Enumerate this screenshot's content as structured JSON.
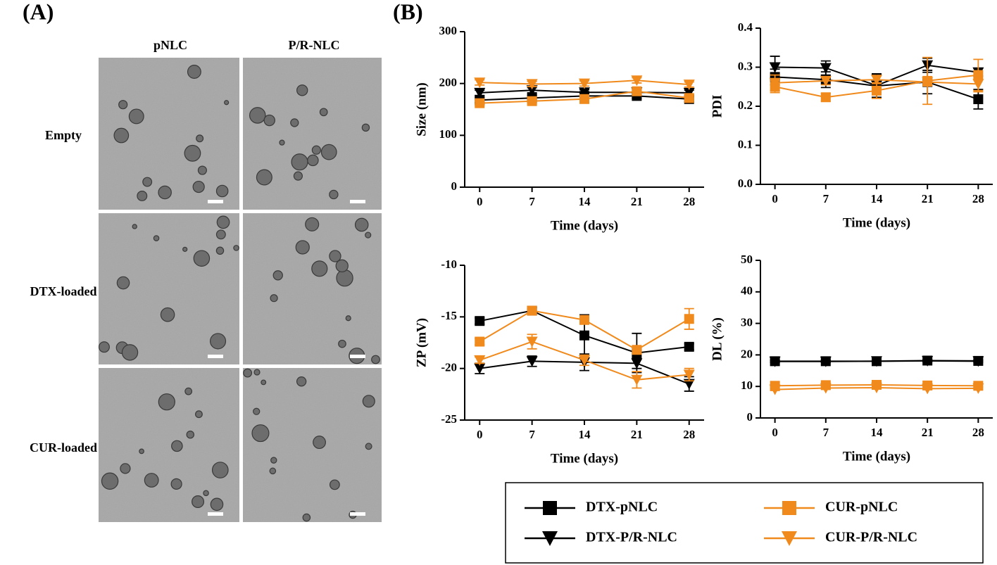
{
  "panel_a": {
    "label": "(A)",
    "columns": [
      "pNLC",
      "P/R-NLC"
    ],
    "rows": [
      "Empty",
      "DTX-loaded",
      "CUR-loaded"
    ]
  },
  "panel_b_label": "(B)",
  "chart_data": [
    {
      "type": "line",
      "ylabel": "Size (nm)",
      "xlabel": "Time (days)",
      "x": [
        0,
        7,
        14,
        21,
        28
      ],
      "xlim": [
        -2,
        30
      ],
      "xticks": [
        0,
        7,
        14,
        21,
        28
      ],
      "ylim": [
        0,
        300
      ],
      "yticks": [
        0,
        100,
        200,
        300
      ],
      "series": [
        {
          "name": "DTX-pNLC",
          "color": "#000000",
          "marker": "square",
          "values": [
            168,
            172,
            176,
            176,
            170
          ],
          "errors": [
            5,
            5,
            5,
            5,
            5
          ]
        },
        {
          "name": "DTX-P/R-NLC",
          "color": "#000000",
          "marker": "triangle-down",
          "values": [
            182,
            187,
            183,
            183,
            182
          ],
          "errors": [
            5,
            5,
            5,
            5,
            5
          ]
        },
        {
          "name": "CUR-pNLC",
          "color": "#f08a1c",
          "marker": "square",
          "values": [
            162,
            166,
            170,
            185,
            172
          ],
          "errors": [
            5,
            5,
            5,
            5,
            5
          ]
        },
        {
          "name": "CUR-P/R-NLC",
          "color": "#f08a1c",
          "marker": "triangle-down",
          "values": [
            202,
            199,
            200,
            206,
            198
          ],
          "errors": [
            5,
            5,
            5,
            5,
            5
          ]
        }
      ]
    },
    {
      "type": "line",
      "ylabel": "PDI",
      "xlabel": "Time (days)",
      "x": [
        0,
        7,
        14,
        21,
        28
      ],
      "xlim": [
        -2,
        30
      ],
      "xticks": [
        0,
        7,
        14,
        21,
        28
      ],
      "ylim": [
        0,
        0.4
      ],
      "yticks": [
        {
          "value": 0,
          "label": "0.0"
        },
        0.1,
        0.2,
        0.3,
        0.4
      ],
      "series": [
        {
          "name": "DTX-pNLC",
          "color": "#000000",
          "marker": "square",
          "values": [
            0.275,
            0.268,
            0.252,
            0.262,
            0.218
          ],
          "errors": [
            0.02,
            0.02,
            0.03,
            0.03,
            0.025
          ]
        },
        {
          "name": "DTX-P/R-NLC",
          "color": "#000000",
          "marker": "triangle-down",
          "values": [
            0.3,
            0.298,
            0.253,
            0.305,
            0.287
          ],
          "errors": [
            0.028,
            0.018,
            0.03,
            0.018,
            0.01
          ]
        },
        {
          "name": "CUR-pNLC",
          "color": "#f08a1c",
          "marker": "square",
          "values": [
            0.25,
            0.223,
            0.24,
            0.265,
            0.28
          ],
          "errors": [
            0.015,
            0.01,
            0.02,
            0.06,
            0.04
          ]
        },
        {
          "name": "CUR-P/R-NLC",
          "color": "#f08a1c",
          "marker": "triangle-down",
          "values": [
            0.26,
            0.265,
            0.268,
            0.262,
            0.257
          ],
          "errors": [
            0.02,
            0.01,
            0.01,
            0.01,
            0.02
          ]
        }
      ]
    },
    {
      "type": "line",
      "ylabel": "ZP (mV)",
      "xlabel": "Time (days)",
      "x": [
        0,
        7,
        14,
        21,
        28
      ],
      "xlim": [
        -2,
        30
      ],
      "xticks": [
        0,
        7,
        14,
        21,
        28
      ],
      "ylim": [
        -25,
        -10
      ],
      "yticks": [
        -25,
        -20,
        -15,
        -10
      ],
      "series": [
        {
          "name": "DTX-pNLC",
          "color": "#000000",
          "marker": "square",
          "values": [
            -15.4,
            -14.4,
            -16.8,
            -18.5,
            -17.9
          ],
          "errors": [
            0.3,
            0.3,
            2.0,
            1.9,
            0.3
          ]
        },
        {
          "name": "DTX-P/R-NLC",
          "color": "#000000",
          "marker": "triangle-down",
          "values": [
            -20.0,
            -19.3,
            -19.4,
            -19.5,
            -21.5
          ],
          "errors": [
            0.5,
            0.5,
            0.8,
            0.5,
            0.7
          ]
        },
        {
          "name": "CUR-pNLC",
          "color": "#f08a1c",
          "marker": "square",
          "values": [
            -17.4,
            -14.4,
            -15.3,
            -18.2,
            -15.2
          ],
          "errors": [
            0.3,
            0.3,
            0.3,
            0.3,
            1.0
          ]
        },
        {
          "name": "CUR-P/R-NLC",
          "color": "#f08a1c",
          "marker": "triangle-down",
          "values": [
            -19.2,
            -17.4,
            -19.2,
            -21.1,
            -20.6
          ],
          "errors": [
            0.3,
            0.7,
            0.5,
            0.8,
            0.6
          ]
        }
      ]
    },
    {
      "type": "line",
      "ylabel": "DL (%)",
      "xlabel": "Time (days)",
      "x": [
        0,
        7,
        14,
        21,
        28
      ],
      "xlim": [
        -2,
        30
      ],
      "xticks": [
        0,
        7,
        14,
        21,
        28
      ],
      "ylim": [
        0,
        50
      ],
      "yticks": [
        0,
        10,
        20,
        30,
        40,
        50
      ],
      "series": [
        {
          "name": "DTX-pNLC",
          "color": "#000000",
          "marker": "square",
          "values": [
            18,
            18,
            18,
            18.2,
            18.1
          ],
          "errors": [
            0.3,
            0.3,
            0.3,
            0.3,
            0.3
          ]
        },
        {
          "name": "DTX-P/R-NLC",
          "color": "#000000",
          "marker": "triangle-down",
          "values": [
            17.9,
            17.9,
            18,
            18.1,
            18
          ],
          "errors": [
            0.3,
            0.3,
            0.3,
            0.3,
            0.3
          ]
        },
        {
          "name": "CUR-pNLC",
          "color": "#f08a1c",
          "marker": "square",
          "values": [
            10.2,
            10.4,
            10.5,
            10.3,
            10.2
          ],
          "errors": [
            0.3,
            0.3,
            0.3,
            0.3,
            0.3
          ]
        },
        {
          "name": "CUR-P/R-NLC",
          "color": "#f08a1c",
          "marker": "triangle-down",
          "values": [
            9.0,
            9.5,
            9.6,
            9.3,
            9.4
          ],
          "errors": [
            0.3,
            0.3,
            0.3,
            0.3,
            0.3
          ]
        }
      ]
    }
  ]
}
